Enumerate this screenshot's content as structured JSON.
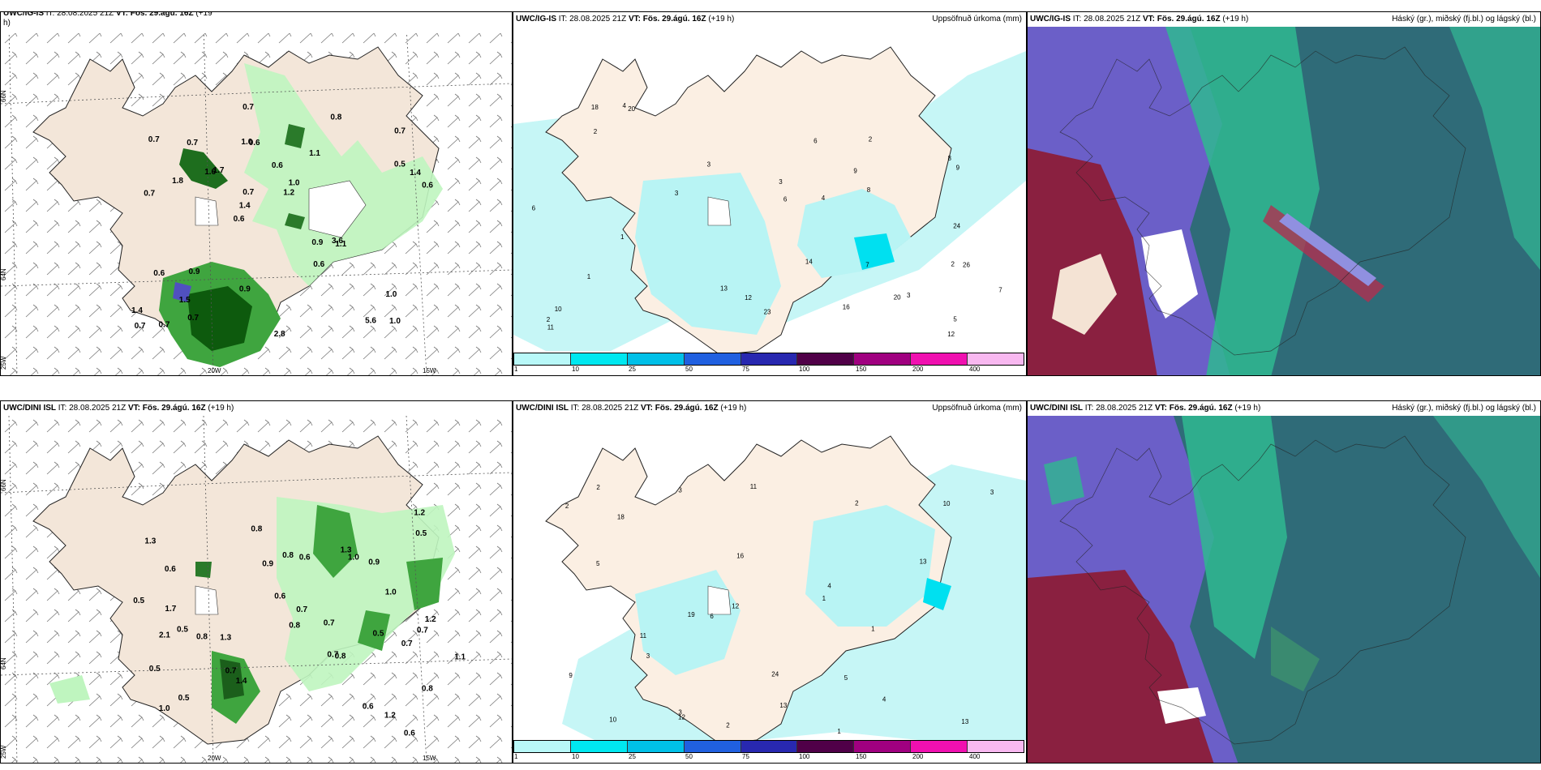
{
  "panels": {
    "p1": {
      "model": "UWC/IG-IS",
      "it": "IT: 28.08.2025 21Z",
      "vt": "VT: Fös. 29.ágú. 16Z",
      "lead": "(+19",
      "lead2": "h)"
    },
    "p2": {
      "model": "UWC/IG-IS",
      "it": "IT: 28.08.2025 21Z",
      "vt": "VT: Fös. 29.ágú. 16Z",
      "lead": "(+19 h)",
      "title": "Uppsöfnuð úrkoma (mm)"
    },
    "p3": {
      "model": "UWC/IG-IS",
      "it": "IT: 28.08.2025 21Z",
      "vt": "VT: Fös. 29.ágú. 16Z",
      "lead": "(+19 h)",
      "title": "Háský (gr.), miðský (fj.bl.) og lágský (bl.)"
    },
    "p4": {
      "model": "UWC/DINI ISL",
      "it": "IT: 28.08.2025 21Z",
      "vt": "VT: Fös. 29.ágú. 16Z",
      "lead": "(+19 h)"
    },
    "p5": {
      "model": "UWC/DINI ISL",
      "it": "IT: 28.08.2025 21Z",
      "vt": "VT: Fös. 29.ágú. 16Z",
      "lead": "(+19 h)",
      "title": "Uppsöfnuð úrkoma (mm)"
    },
    "p6": {
      "model": "UWC/DINI ISL",
      "it": "IT: 28.08.2025 21Z",
      "vt": "VT: Fös. 29.ágú. 16Z",
      "lead": "(+19 h)",
      "title": "Háský (gr.), miðský (fj.bl.) og lágský (bl.)"
    }
  },
  "grid_labels": {
    "lat66": "66N",
    "lat64": "64N",
    "lon25": "25W",
    "lon20": "20W",
    "lon15": "15W"
  },
  "colorbar": {
    "ticks": [
      "1",
      "10",
      "25",
      "50",
      "75",
      "100",
      "150",
      "200",
      "400"
    ],
    "colors": [
      "#b8f8f8",
      "#00e8f0",
      "#00c0e8",
      "#2060e0",
      "#2828b0",
      "#500048",
      "#a00080",
      "#f010b0",
      "#f8b8f0"
    ]
  },
  "p1_labels": [
    "1.0",
    "0.7",
    "0.7",
    "0.6",
    "1.1",
    "0.7",
    "1.0",
    "0.6",
    "0.6",
    "1.7",
    "1.4",
    "1.5",
    "0.6",
    "1.0",
    "1.1",
    "0.7",
    "0.7",
    "0.6",
    "0.9",
    "0.5",
    "1.4",
    "0.9",
    "0.7",
    "0.7",
    "0.8",
    "0.9",
    "5.6",
    "1.0",
    "3.6",
    "2.8",
    "1.6",
    "1.8",
    "0.6",
    "0.7",
    "1.4",
    "1.2",
    "0.7"
  ],
  "p4_labels": [
    "0.6",
    "0.5",
    "0.7",
    "1.3",
    "0.8",
    "0.6",
    "0.5",
    "1.3",
    "0.9",
    "0.8",
    "1.0",
    "1.2",
    "1.4",
    "0.8",
    "0.7",
    "0.5",
    "0.5",
    "0.7",
    "0.5",
    "1.0",
    "1.2",
    "0.6",
    "1.0",
    "1.1",
    "1.2",
    "1.7",
    "0.8",
    "0.8",
    "0.6",
    "0.5",
    "0.8",
    "2.1",
    "0.7",
    "1.3",
    "0.9",
    "0.7",
    "0.7",
    "0.6"
  ],
  "p2_labels": [
    "1",
    "4",
    "2",
    "7",
    "6",
    "3",
    "3",
    "9",
    "26",
    "10",
    "20",
    "14",
    "24",
    "23",
    "18",
    "13",
    "12",
    "8",
    "5",
    "7",
    "1",
    "2",
    "3",
    "3",
    "4",
    "6",
    "20",
    "16",
    "2",
    "8",
    "12",
    "2",
    "6",
    "9",
    "11"
  ],
  "p5_labels": [
    "2",
    "1",
    "3",
    "4",
    "3",
    "18",
    "19",
    "13",
    "11",
    "16",
    "10",
    "13",
    "12",
    "24",
    "2",
    "1",
    "5",
    "12",
    "6",
    "2",
    "5",
    "3",
    "4",
    "10",
    "13",
    "11",
    "9",
    "3",
    "2",
    "1"
  ]
}
